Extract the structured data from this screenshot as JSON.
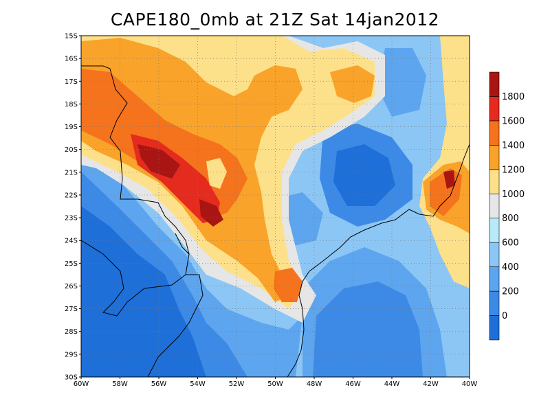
{
  "title": "CAPE180_0mb at 21Z Sat 14jan2012",
  "map": {
    "lon_range": [
      -60,
      -40
    ],
    "lat_range": [
      -30,
      -15
    ],
    "lon_ticks": [
      {
        "value": -60,
        "label": "60W"
      },
      {
        "value": -58,
        "label": "58W"
      },
      {
        "value": -56,
        "label": "56W"
      },
      {
        "value": -54,
        "label": "54W"
      },
      {
        "value": -52,
        "label": "52W"
      },
      {
        "value": -50,
        "label": "50W"
      },
      {
        "value": -48,
        "label": "48W"
      },
      {
        "value": -46,
        "label": "46W"
      },
      {
        "value": -44,
        "label": "44W"
      },
      {
        "value": -42,
        "label": "42W"
      },
      {
        "value": -40,
        "label": "40W"
      }
    ],
    "lat_ticks": [
      {
        "value": -15,
        "label": "15S"
      },
      {
        "value": -16,
        "label": "16S"
      },
      {
        "value": -17,
        "label": "17S"
      },
      {
        "value": -18,
        "label": "18S"
      },
      {
        "value": -19,
        "label": "19S"
      },
      {
        "value": -20,
        "label": "20S"
      },
      {
        "value": -21,
        "label": "21S"
      },
      {
        "value": -22,
        "label": "22S"
      },
      {
        "value": -23,
        "label": "23S"
      },
      {
        "value": -24,
        "label": "24S"
      },
      {
        "value": -25,
        "label": "25S"
      },
      {
        "value": -26,
        "label": "26S"
      },
      {
        "value": -27,
        "label": "27S"
      },
      {
        "value": -28,
        "label": "28S"
      },
      {
        "value": -29,
        "label": "29S"
      },
      {
        "value": -30,
        "label": "30S"
      }
    ],
    "grid": true
  },
  "colorbar": {
    "bands": [
      {
        "color": "#1e6fd8"
      },
      {
        "color": "#3d8ae6"
      },
      {
        "color": "#5da5ef"
      },
      {
        "color": "#8cc6f5"
      },
      {
        "color": "#b8eaf7"
      },
      {
        "color": "#e6e6e6"
      },
      {
        "color": "#fde08a"
      },
      {
        "color": "#f9a32a"
      },
      {
        "color": "#f4731c"
      },
      {
        "color": "#e52a1e"
      },
      {
        "color": "#a81512"
      }
    ],
    "labels": [
      "0",
      "200",
      "400",
      "600",
      "800",
      "1000",
      "1200",
      "1400",
      "1600",
      "1800"
    ]
  }
}
